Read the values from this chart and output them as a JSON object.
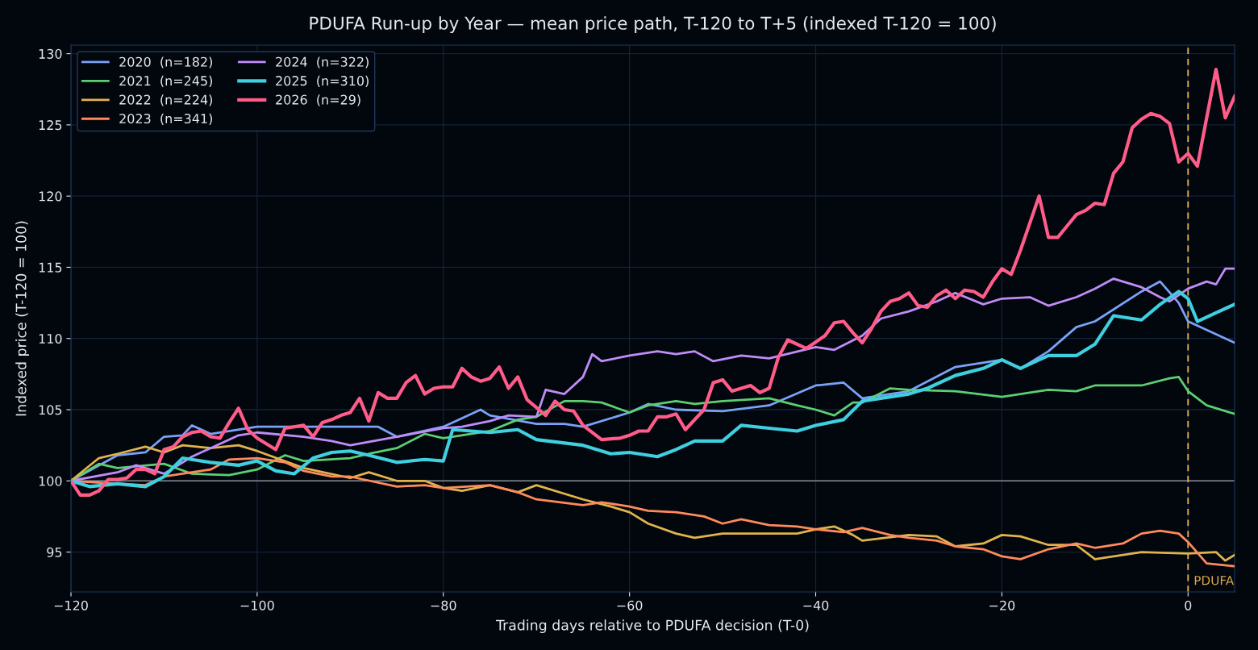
{
  "chart_data": {
    "type": "line",
    "title": "PDUFA Run-up by Year — mean price path, T-120 to T+5 (indexed T-120 = 100)",
    "xlabel": "Trading days relative to PDUFA decision (T-0)",
    "ylabel": "Indexed price (T-120 = 100)",
    "xlim": [
      -120,
      5
    ],
    "ylim": [
      92.2,
      130.6
    ],
    "xticks": [
      {
        "value": -120,
        "label": "−120"
      },
      {
        "value": -100,
        "label": "−100"
      },
      {
        "value": -80,
        "label": "−80"
      },
      {
        "value": -60,
        "label": "−60"
      },
      {
        "value": -40,
        "label": "−40"
      },
      {
        "value": -20,
        "label": "−20"
      },
      0
    ],
    "yticks": [
      95,
      100,
      105,
      110,
      115,
      120,
      125,
      130
    ],
    "grid": true,
    "legend": "top left",
    "line_style": "solid",
    "ref_lines": [
      {
        "axis": "y",
        "value": 100,
        "label": null,
        "color": "#8a8f98",
        "line_style": "solid"
      },
      {
        "axis": "x",
        "value": 0,
        "label": "PDUFA",
        "color": "#d9a84a",
        "line_style": "dashed"
      }
    ],
    "series": [
      {
        "name": "2020  (n=182)",
        "color": "#7aa2f7",
        "x": [
          -120,
          -115,
          -112,
          -110,
          -108,
          -107,
          -105,
          -100,
          -95,
          -90,
          -87,
          -85,
          -80,
          -76,
          -75,
          -70,
          -67,
          -65,
          -60,
          -58,
          -55,
          -50,
          -45,
          -40,
          -37,
          -35,
          -30,
          -25,
          -20,
          -18,
          -15,
          -12,
          -10,
          -5,
          -3,
          -1,
          0,
          5
        ],
        "values": [
          100,
          101.8,
          102.0,
          103.1,
          103.2,
          103.9,
          103.3,
          103.8,
          103.8,
          103.8,
          103.8,
          103.1,
          103.8,
          105.0,
          104.6,
          104.0,
          104.0,
          103.8,
          104.8,
          105.4,
          105.0,
          104.9,
          105.3,
          106.7,
          106.9,
          105.8,
          106.3,
          108.0,
          108.5,
          107.9,
          109.1,
          110.8,
          111.2,
          113.3,
          114.0,
          112.5,
          111.2,
          109.7
        ]
      },
      {
        "name": "2021  (n=245)",
        "color": "#5ccf73",
        "x": [
          -120,
          -117,
          -115,
          -110,
          -107,
          -103,
          -100,
          -97,
          -95,
          -90,
          -88,
          -85,
          -82,
          -80,
          -75,
          -72,
          -70,
          -67,
          -65,
          -63,
          -60,
          -58,
          -55,
          -53,
          -50,
          -45,
          -42,
          -40,
          -38,
          -36,
          -35,
          -32,
          -30,
          -25,
          -20,
          -15,
          -12,
          -10,
          -5,
          -2,
          -1,
          0,
          2,
          5
        ],
        "values": [
          100,
          101.2,
          100.9,
          101.2,
          100.5,
          100.4,
          100.8,
          101.8,
          101.4,
          101.6,
          101.9,
          102.3,
          103.3,
          103.0,
          103.5,
          104.3,
          104.5,
          105.6,
          105.6,
          105.5,
          104.8,
          105.3,
          105.6,
          105.4,
          105.6,
          105.8,
          105.3,
          105.0,
          104.6,
          105.5,
          105.5,
          106.5,
          106.4,
          106.3,
          105.9,
          106.4,
          106.3,
          106.7,
          106.7,
          107.2,
          107.3,
          106.3,
          105.3,
          104.7
        ]
      },
      {
        "name": "2022  (n=224)",
        "color": "#e0b44c",
        "x": [
          -120,
          -117,
          -115,
          -112,
          -110,
          -108,
          -105,
          -102,
          -100,
          -95,
          -90,
          -88,
          -85,
          -82,
          -80,
          -78,
          -75,
          -72,
          -70,
          -65,
          -62,
          -60,
          -58,
          -55,
          -53,
          -50,
          -45,
          -42,
          -40,
          -38,
          -36,
          -35,
          -30,
          -27,
          -25,
          -22,
          -20,
          -18,
          -15,
          -12,
          -10,
          -5,
          0,
          3,
          4,
          5
        ],
        "values": [
          100,
          101.6,
          101.9,
          102.4,
          102.0,
          102.5,
          102.3,
          102.5,
          102.1,
          100.9,
          100.2,
          100.6,
          100.0,
          100.0,
          99.5,
          99.3,
          99.7,
          99.2,
          99.7,
          98.7,
          98.2,
          97.8,
          97.0,
          96.3,
          96.0,
          96.3,
          96.3,
          96.3,
          96.6,
          96.8,
          96.2,
          95.8,
          96.2,
          96.1,
          95.4,
          95.6,
          96.2,
          96.1,
          95.5,
          95.5,
          94.5,
          95.0,
          94.9,
          95.0,
          94.4,
          94.8
        ]
      },
      {
        "name": "2023  (n=341)",
        "color": "#ff8a5c",
        "x": [
          -120,
          -115,
          -112,
          -110,
          -105,
          -103,
          -100,
          -97,
          -95,
          -92,
          -90,
          -85,
          -82,
          -80,
          -75,
          -72,
          -70,
          -65,
          -63,
          -60,
          -58,
          -55,
          -52,
          -50,
          -48,
          -45,
          -42,
          -40,
          -37,
          -35,
          -32,
          -30,
          -27,
          -25,
          -22,
          -20,
          -18,
          -15,
          -12,
          -10,
          -7,
          -5,
          -3,
          -1,
          0,
          2,
          5
        ],
        "values": [
          100,
          99.8,
          99.7,
          100.3,
          100.8,
          101.5,
          101.6,
          101.3,
          100.7,
          100.3,
          100.3,
          99.6,
          99.7,
          99.5,
          99.7,
          99.2,
          98.7,
          98.3,
          98.5,
          98.2,
          97.9,
          97.8,
          97.5,
          97.0,
          97.3,
          96.9,
          96.8,
          96.6,
          96.4,
          96.7,
          96.2,
          96.0,
          95.8,
          95.4,
          95.2,
          94.7,
          94.5,
          95.2,
          95.6,
          95.3,
          95.6,
          96.3,
          96.5,
          96.3,
          95.7,
          94.2,
          94.0
        ]
      },
      {
        "name": "2024  (n=322)",
        "color": "#c08cf7",
        "x": [
          -120,
          -115,
          -113,
          -110,
          -107,
          -105,
          -102,
          -100,
          -95,
          -92,
          -90,
          -85,
          -80,
          -78,
          -75,
          -73,
          -70,
          -69,
          -67,
          -65,
          -64,
          -63,
          -60,
          -57,
          -55,
          -53,
          -51,
          -48,
          -45,
          -40,
          -38,
          -35,
          -33,
          -30,
          -27,
          -25,
          -22,
          -20,
          -17,
          -15,
          -12,
          -10,
          -8,
          -5,
          -3,
          -2,
          0,
          2,
          3,
          4,
          5
        ],
        "values": [
          100,
          100.6,
          101.1,
          100.5,
          101.7,
          102.3,
          103.2,
          103.4,
          103.1,
          102.8,
          102.5,
          103.1,
          103.7,
          103.8,
          104.2,
          104.6,
          104.5,
          106.4,
          106.1,
          107.3,
          108.9,
          108.4,
          108.8,
          109.1,
          108.9,
          109.1,
          108.4,
          108.8,
          108.6,
          109.4,
          109.2,
          110.2,
          111.4,
          111.9,
          112.6,
          113.2,
          112.4,
          112.8,
          112.9,
          112.3,
          112.9,
          113.5,
          114.2,
          113.6,
          112.9,
          112.6,
          113.5,
          114.0,
          113.8,
          114.9,
          114.9
        ]
      },
      {
        "name": "2025  (n=310)",
        "color": "#3fcfdf",
        "x": [
          -120,
          -118,
          -115,
          -112,
          -110,
          -108,
          -105,
          -102,
          -100,
          -98,
          -96,
          -94,
          -92,
          -90,
          -88,
          -85,
          -82,
          -80,
          -79,
          -75,
          -72,
          -70,
          -65,
          -62,
          -60,
          -57,
          -55,
          -53,
          -50,
          -48,
          -45,
          -42,
          -40,
          -37,
          -35,
          -30,
          -28,
          -25,
          -22,
          -20,
          -18,
          -15,
          -12,
          -10,
          -8,
          -5,
          -3,
          -1,
          0,
          1,
          3,
          5
        ],
        "values": [
          100,
          99.6,
          99.8,
          99.6,
          100.3,
          101.6,
          101.3,
          101.1,
          101.4,
          100.7,
          100.5,
          101.6,
          102.0,
          102.1,
          101.8,
          101.3,
          101.5,
          101.4,
          103.6,
          103.4,
          103.6,
          102.9,
          102.5,
          101.9,
          102.0,
          101.7,
          102.2,
          102.8,
          102.8,
          103.9,
          103.7,
          103.5,
          103.9,
          104.3,
          105.6,
          106.1,
          106.5,
          107.4,
          107.9,
          108.5,
          107.9,
          108.8,
          108.8,
          109.6,
          111.6,
          111.3,
          112.4,
          113.3,
          112.8,
          111.2,
          111.8,
          112.4
        ]
      },
      {
        "name": "2026  (n=29)",
        "color": "#ff5c8a",
        "x": [
          -120,
          -119,
          -118,
          -117,
          -116,
          -115,
          -114,
          -113,
          -112,
          -111,
          -110,
          -109,
          -108,
          -107,
          -106,
          -105,
          -104,
          -103,
          -102,
          -101,
          -100,
          -98,
          -97,
          -95,
          -94,
          -93,
          -92,
          -91,
          -90,
          -89,
          -88,
          -87,
          -86,
          -85,
          -84,
          -83,
          -82,
          -81,
          -80,
          -79,
          -78,
          -77,
          -76,
          -75,
          -74,
          -73,
          -72,
          -71,
          -69,
          -68,
          -67,
          -66,
          -65,
          -63,
          -61,
          -60,
          -59,
          -58,
          -57,
          -56,
          -55,
          -54,
          -52,
          -51,
          -50,
          -49,
          -47,
          -46,
          -45,
          -44,
          -43,
          -41,
          -39,
          -38,
          -37,
          -36,
          -35,
          -34,
          -33,
          -32,
          -31,
          -30,
          -29,
          -28,
          -27,
          -26,
          -25,
          -24,
          -23,
          -22,
          -21,
          -20,
          -19,
          -18,
          -16,
          -15,
          -14,
          -13,
          -12,
          -11,
          -10,
          -9,
          -8,
          -7,
          -6,
          -5,
          -4,
          -3,
          -2,
          -1,
          0,
          1,
          3,
          4,
          5
        ],
        "values": [
          100,
          99.0,
          99.0,
          99.3,
          100.1,
          100.1,
          100.2,
          100.8,
          100.8,
          100.5,
          102.2,
          102.4,
          103.1,
          103.4,
          103.5,
          103.1,
          103.0,
          104.1,
          105.1,
          103.6,
          103.0,
          102.2,
          103.7,
          103.9,
          103.1,
          104.1,
          104.3,
          104.6,
          104.8,
          105.8,
          104.2,
          106.2,
          105.8,
          105.8,
          106.9,
          107.4,
          106.1,
          106.5,
          106.6,
          106.6,
          107.9,
          107.3,
          107.0,
          107.2,
          108.0,
          106.5,
          107.3,
          105.7,
          104.6,
          105.6,
          105.0,
          104.9,
          103.9,
          102.9,
          103.0,
          103.2,
          103.5,
          103.5,
          104.5,
          104.5,
          104.7,
          103.6,
          105.0,
          106.9,
          107.1,
          106.3,
          106.7,
          106.2,
          106.5,
          108.7,
          109.9,
          109.3,
          110.2,
          111.1,
          111.2,
          110.4,
          109.7,
          110.7,
          111.9,
          112.6,
          112.8,
          113.2,
          112.3,
          112.2,
          113.0,
          113.4,
          112.8,
          113.4,
          113.3,
          112.9,
          114.0,
          114.9,
          114.5,
          116.2,
          120.0,
          117.1,
          117.1,
          117.9,
          118.7,
          119.0,
          119.5,
          119.4,
          121.6,
          122.4,
          124.8,
          125.4,
          125.8,
          125.6,
          125.1,
          122.4,
          123.0,
          122.1,
          128.9,
          125.5,
          127.0
        ]
      }
    ]
  }
}
